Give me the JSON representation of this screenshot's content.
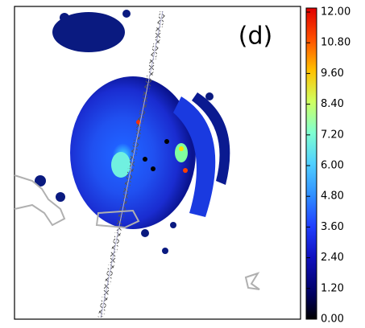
{
  "panel_label": "(d)",
  "colorbar": {
    "clim": [
      0,
      12
    ],
    "ticks": [
      {
        "value": 0,
        "label": "0.00"
      },
      {
        "value": 1.2,
        "label": "1.20"
      },
      {
        "value": 2.4,
        "label": "2.40"
      },
      {
        "value": 3.6,
        "label": "3.60"
      },
      {
        "value": 4.8,
        "label": "4.80"
      },
      {
        "value": 6,
        "label": "6.00"
      },
      {
        "value": 7.2,
        "label": "7.20"
      },
      {
        "value": 8.4,
        "label": "8.40"
      },
      {
        "value": 9.6,
        "label": "9.60"
      },
      {
        "value": 10.8,
        "label": "10.80"
      },
      {
        "value": 12,
        "label": "12.00"
      }
    ]
  }
}
